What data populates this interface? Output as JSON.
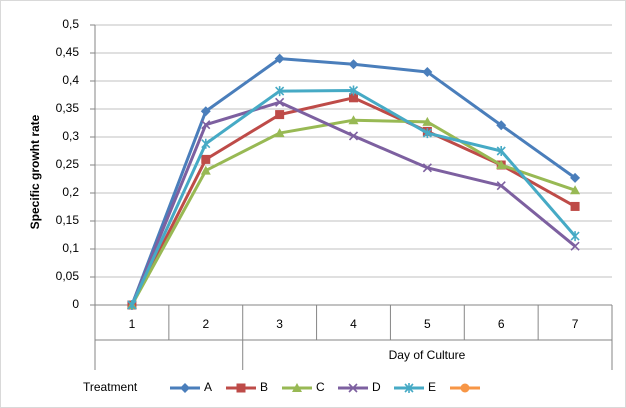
{
  "chart_data": {
    "type": "line",
    "y_label": "Specific  growht rate",
    "x_label": "Day of Culture",
    "legend_title": "Treatment",
    "legend_position": "bottom",
    "categories": [
      "1",
      "2",
      "3",
      "4",
      "5",
      "6",
      "7"
    ],
    "ylim": [
      0,
      0.5
    ],
    "yticks": [
      0,
      {
        "value": 0.05,
        "label": "0,05"
      },
      {
        "value": 0.1,
        "label": "0,1"
      },
      {
        "value": 0.15,
        "label": "0,15"
      },
      {
        "value": 0.2,
        "label": "0,2"
      },
      {
        "value": 0.25,
        "label": "0,25"
      },
      {
        "value": 0.3,
        "label": "0,3"
      },
      {
        "value": 0.35,
        "label": "0,35"
      },
      {
        "value": 0.4,
        "label": "0,4"
      },
      {
        "value": 0.45,
        "label": "0,45"
      },
      {
        "value": 0.5,
        "label": "0,5"
      }
    ],
    "grid": true,
    "series": [
      {
        "name": "A",
        "color": "#4a7ebb",
        "marker": "diamond",
        "values": [
          0,
          0.346,
          0.44,
          0.43,
          0.416,
          0.321,
          0.227
        ]
      },
      {
        "name": "B",
        "color": "#be4b48",
        "marker": "square",
        "values": [
          0,
          0.26,
          0.34,
          0.37,
          0.31,
          0.25,
          0.176
        ]
      },
      {
        "name": "C",
        "color": "#98b954",
        "marker": "triangle",
        "values": [
          0,
          0.24,
          0.307,
          0.33,
          0.327,
          0.25,
          0.205
        ]
      },
      {
        "name": "D",
        "color": "#7d60a0",
        "marker": "x",
        "values": [
          0,
          0.322,
          0.362,
          0.302,
          0.245,
          0.213,
          0.105
        ]
      },
      {
        "name": "E",
        "color": "#46aac5",
        "marker": "star",
        "values": [
          0,
          0.288,
          0.382,
          0.383,
          0.307,
          0.275,
          0.123
        ]
      },
      {
        "color": "#f79646",
        "marker": "circle",
        "values": [
          null,
          null,
          null,
          null,
          null,
          null,
          null
        ]
      }
    ]
  }
}
